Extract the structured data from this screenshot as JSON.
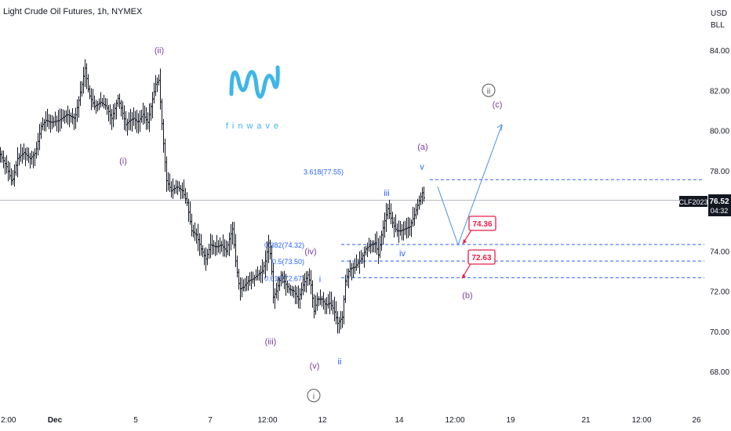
{
  "header": {
    "title": "Light Crude Oil Futures, 1h, NYMEX"
  },
  "price_axis": {
    "currency": "USD",
    "unit": "BLL"
  },
  "logo": {
    "text": "finwave",
    "color": "#3fb6e8"
  },
  "ticker": {
    "symbol": "CLF2023",
    "price": "76.52",
    "countdown": "04:32"
  },
  "colors": {
    "purple": "#7b3fa0",
    "blue": "#2962ff",
    "red": "#e91e4a",
    "candle": "#131722",
    "projection": "#4a90e2"
  },
  "chart_data": {
    "type": "candlestick",
    "title": "Light Crude Oil Futures, 1h, NYMEX",
    "ylim": [
      66,
      86
    ],
    "y_ticks": [
      "84.00",
      "82.00",
      "80.00",
      "78.00",
      "76.00",
      "74.00",
      "72.00",
      "70.00",
      "68.00"
    ],
    "x_ticks": [
      {
        "label": "2:00",
        "t": 0
      },
      {
        "label": "Dec",
        "t": 70
      },
      {
        "label": "5",
        "t": 173
      },
      {
        "label": "7",
        "t": 268
      },
      {
        "label": "12:00",
        "t": 341
      },
      {
        "label": "12",
        "t": 411
      },
      {
        "label": "14",
        "t": 509
      },
      {
        "label": "12:00",
        "t": 580
      },
      {
        "label": "19",
        "t": 651
      },
      {
        "label": "21",
        "t": 747
      },
      {
        "label": "12:00",
        "t": 818
      },
      {
        "label": "26",
        "t": 888
      }
    ],
    "price_path": [
      [
        0,
        78.8
      ],
      [
        8,
        78.2
      ],
      [
        15,
        77.4
      ],
      [
        22,
        78.6
      ],
      [
        30,
        78.9
      ],
      [
        38,
        78.6
      ],
      [
        45,
        78.9
      ],
      [
        52,
        80.2
      ],
      [
        58,
        80.5
      ],
      [
        65,
        80.4
      ],
      [
        75,
        80.5
      ],
      [
        85,
        80.8
      ],
      [
        95,
        80.6
      ],
      [
        100,
        81.5
      ],
      [
        105,
        82.5
      ],
      [
        108,
        83.1
      ],
      [
        113,
        81.8
      ],
      [
        120,
        81.2
      ],
      [
        128,
        81.4
      ],
      [
        135,
        81.2
      ],
      [
        142,
        80.6
      ],
      [
        150,
        81.6
      ],
      [
        155,
        81.0
      ],
      [
        160,
        80.3
      ],
      [
        165,
        80.5
      ],
      [
        170,
        80.6
      ],
      [
        175,
        80.4
      ],
      [
        182,
        80.8
      ],
      [
        188,
        80.4
      ],
      [
        192,
        81.2
      ],
      [
        198,
        82.3
      ],
      [
        202,
        82.5
      ],
      [
        207,
        79.8
      ],
      [
        212,
        77.5
      ],
      [
        218,
        77.0
      ],
      [
        225,
        77.2
      ],
      [
        232,
        77.0
      ],
      [
        238,
        76.4
      ],
      [
        244,
        75.0
      ],
      [
        250,
        74.8
      ],
      [
        256,
        74.1
      ],
      [
        262,
        73.6
      ],
      [
        268,
        74.3
      ],
      [
        275,
        74.2
      ],
      [
        282,
        74.3
      ],
      [
        288,
        74.0
      ],
      [
        292,
        74.6
      ],
      [
        296,
        75.1
      ],
      [
        300,
        73.5
      ],
      [
        305,
        72.1
      ],
      [
        310,
        72.2
      ],
      [
        316,
        72.5
      ],
      [
        322,
        72.6
      ],
      [
        328,
        72.8
      ],
      [
        334,
        73.0
      ],
      [
        338,
        73.5
      ],
      [
        342,
        74.4
      ],
      [
        345,
        73.6
      ],
      [
        348,
        71.7
      ],
      [
        352,
        72.0
      ],
      [
        358,
        72.8
      ],
      [
        363,
        72.4
      ],
      [
        368,
        72.1
      ],
      [
        374,
        72.0
      ],
      [
        380,
        71.6
      ],
      [
        386,
        72.3
      ],
      [
        392,
        72.8
      ],
      [
        396,
        72.3
      ],
      [
        400,
        71.0
      ],
      [
        404,
        71.6
      ],
      [
        410,
        71.6
      ],
      [
        415,
        71.3
      ],
      [
        420,
        71.4
      ],
      [
        425,
        71.1
      ],
      [
        430,
        70.4
      ],
      [
        436,
        70.7
      ],
      [
        440,
        72.5
      ],
      [
        445,
        73.1
      ],
      [
        452,
        73.2
      ],
      [
        460,
        73.6
      ],
      [
        466,
        74.1
      ],
      [
        472,
        74.3
      ],
      [
        478,
        74.4
      ],
      [
        482,
        73.8
      ],
      [
        486,
        74.8
      ],
      [
        490,
        75.5
      ],
      [
        494,
        76.1
      ],
      [
        500,
        75.4
      ],
      [
        505,
        75.0
      ],
      [
        510,
        75.0
      ],
      [
        516,
        75.1
      ],
      [
        522,
        75.2
      ],
      [
        528,
        75.8
      ],
      [
        533,
        76.4
      ],
      [
        538,
        76.9
      ],
      [
        541,
        76.52
      ]
    ],
    "reference_price": 76.52,
    "levels": [
      {
        "label": "3.618(77.55)",
        "value": 77.55
      },
      {
        "label": "0.382(74.32)",
        "value": 74.32
      },
      {
        "label": "0.5(73.50)",
        "value": 73.5
      },
      {
        "label": "0.618(72.67)",
        "value": 72.67
      }
    ],
    "targets": [
      {
        "label": "74.36",
        "value": 74.36
      },
      {
        "label": "72.63",
        "value": 72.63
      }
    ],
    "projection": [
      [
        558,
        77.2
      ],
      [
        584,
        74.3
      ],
      [
        640,
        80.3
      ]
    ],
    "wave_labels": [
      {
        "text": "(ii)",
        "t": 203,
        "v": 84.0,
        "color": "purple",
        "circled": false
      },
      {
        "text": "(i)",
        "t": 157,
        "v": 78.5,
        "color": "purple",
        "circled": false
      },
      {
        "text": "(iii)",
        "t": 345,
        "v": 69.5,
        "color": "purple",
        "circled": false
      },
      {
        "text": "(iv)",
        "t": 396,
        "v": 74.0,
        "color": "purple",
        "circled": false
      },
      {
        "text": "(v)",
        "t": 401,
        "v": 68.3,
        "color": "purple",
        "circled": false
      },
      {
        "text": "i",
        "t": 408,
        "v": 72.6,
        "color": "blue",
        "circled": false
      },
      {
        "text": "ii",
        "t": 433,
        "v": 68.5,
        "color": "blue",
        "circled": false
      },
      {
        "text": "iii",
        "t": 493,
        "v": 76.9,
        "color": "blue",
        "circled": false
      },
      {
        "text": "iv",
        "t": 513,
        "v": 73.9,
        "color": "blue",
        "circled": false
      },
      {
        "text": "v",
        "t": 538,
        "v": 78.2,
        "color": "blue",
        "circled": false
      },
      {
        "text": "(a)",
        "t": 539,
        "v": 79.2,
        "color": "purple",
        "circled": false
      },
      {
        "text": "(b)",
        "t": 596,
        "v": 71.8,
        "color": "purple",
        "circled": false
      },
      {
        "text": "(c)",
        "t": 634,
        "v": 81.3,
        "color": "purple",
        "circled": false
      },
      {
        "text": "ii",
        "t": 623,
        "v": 82.0,
        "color": "gray",
        "circled": true
      },
      {
        "text": "i",
        "t": 400,
        "v": 66.8,
        "color": "gray",
        "circled": true
      }
    ]
  }
}
